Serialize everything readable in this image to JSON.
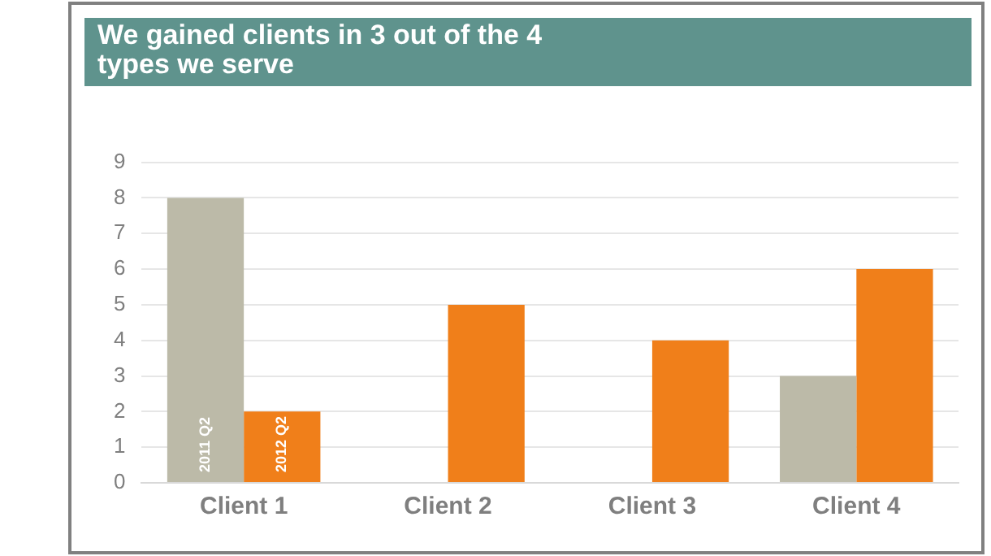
{
  "chart_data": {
    "type": "bar",
    "title": "We gained clients in 3 out of the 4\ntypes we serve",
    "categories": [
      "Client 1",
      "Client 2",
      "Client 3",
      "Client 4"
    ],
    "series": [
      {
        "name": "2011 Q2",
        "color": "#bcbaa8",
        "values": [
          8,
          0,
          0,
          3
        ]
      },
      {
        "name": "2012 Q2",
        "color": "#f07f1a",
        "values": [
          2,
          5,
          4,
          6
        ]
      }
    ],
    "ylim": [
      0,
      9
    ],
    "yticks": [
      0,
      1,
      2,
      3,
      4,
      5,
      6,
      7,
      8,
      9
    ],
    "grid": "y",
    "legend": false
  }
}
